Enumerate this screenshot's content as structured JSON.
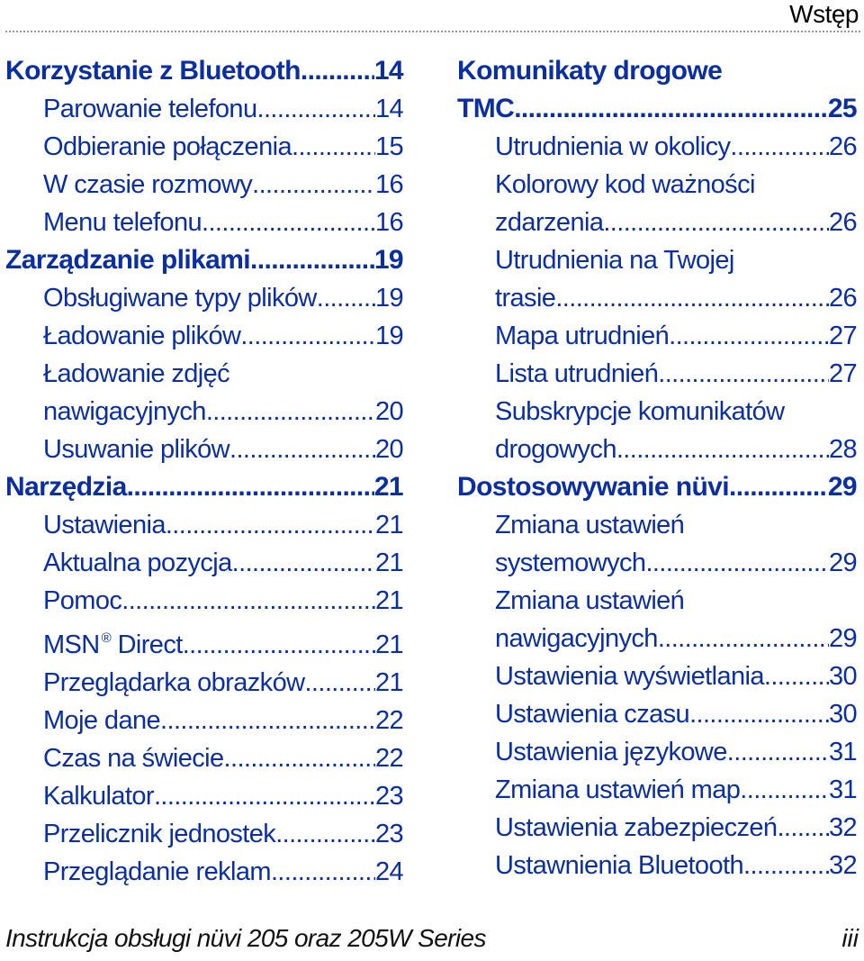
{
  "header": {
    "section": "Wstęp"
  },
  "toc_left": [
    {
      "level": 1,
      "title": "Korzystanie z Bluetooth",
      "page": "14"
    },
    {
      "level": 2,
      "title": "Parowanie telefonu",
      "page": "14"
    },
    {
      "level": 2,
      "title": "Odbieranie połączenia",
      "page": "15"
    },
    {
      "level": 2,
      "title": "W czasie rozmowy",
      "page": "16"
    },
    {
      "level": 2,
      "title": "Menu telefonu",
      "page": "16"
    },
    {
      "level": 1,
      "title": "Zarządzanie plikami",
      "page": "19"
    },
    {
      "level": 2,
      "title": "Obsługiwane typy plików",
      "page": "19"
    },
    {
      "level": 2,
      "title": "Ładowanie plików",
      "page": "19"
    },
    {
      "level": 2,
      "title": "Ładowanie zdjęć",
      "title_cont": "nawigacyjnych",
      "page": "20"
    },
    {
      "level": 2,
      "title": "Usuwanie plików",
      "page": "20"
    },
    {
      "level": 1,
      "title": "Narzędzia",
      "page": "21"
    },
    {
      "level": 2,
      "title": "Ustawienia",
      "page": "21"
    },
    {
      "level": 2,
      "title": "Aktualna pozycja",
      "page": "21"
    },
    {
      "level": 2,
      "title": "Pomoc",
      "page": "21"
    },
    {
      "level": 2,
      "title": "MSN",
      "title_sup": "®",
      "title_after": " Direct",
      "page": "21"
    },
    {
      "level": 2,
      "title": "Przeglądarka obrazków",
      "page": "21"
    },
    {
      "level": 2,
      "title": "Moje dane",
      "page": "22"
    },
    {
      "level": 2,
      "title": "Czas na świecie",
      "page": "22"
    },
    {
      "level": 2,
      "title": "Kalkulator",
      "page": "23"
    },
    {
      "level": 2,
      "title": "Przelicznik jednostek",
      "page": "23"
    },
    {
      "level": 2,
      "title": "Przeglądanie reklam",
      "page": "24"
    }
  ],
  "toc_right": [
    {
      "level": 1,
      "title": "Komunikaty drogowe",
      "title_cont": "TMC",
      "page": "25"
    },
    {
      "level": 2,
      "title": "Utrudnienia w okolicy",
      "page": "26"
    },
    {
      "level": 2,
      "title": "Kolorowy kod ważności",
      "title_cont": "zdarzenia",
      "page": "26"
    },
    {
      "level": 2,
      "title": "Utrudnienia na Twojej",
      "title_cont": "trasie",
      "page": "26"
    },
    {
      "level": 2,
      "title": "Mapa utrudnień",
      "page": "27"
    },
    {
      "level": 2,
      "title": "Lista utrudnień",
      "page": "27"
    },
    {
      "level": 2,
      "title": "Subskrypcje komunikatów",
      "title_cont": "drogowych",
      "page": "28"
    },
    {
      "level": 1,
      "title": "Dostosowywanie nüvi",
      "page": "29"
    },
    {
      "level": 2,
      "title": "Zmiana ustawień",
      "title_cont": "systemowych",
      "page": "29"
    },
    {
      "level": 2,
      "title": "Zmiana ustawień",
      "title_cont": "nawigacyjnych",
      "page": "29"
    },
    {
      "level": 2,
      "title": "Ustawienia wyświetlania",
      "page": "30"
    },
    {
      "level": 2,
      "title": "Ustawienia czasu",
      "page": "30"
    },
    {
      "level": 2,
      "title": "Ustawienia językowe",
      "page": "31"
    },
    {
      "level": 2,
      "title": "Zmiana ustawień map",
      "page": "31"
    },
    {
      "level": 2,
      "title": "Ustawienia zabezpieczeń",
      "page": "32"
    },
    {
      "level": 2,
      "title": "Ustawnienia Bluetooth",
      "page": "32"
    }
  ],
  "footer": {
    "title": "Instrukcja obsługi nüvi 205 oraz 205W Series",
    "page_number": "iii"
  }
}
